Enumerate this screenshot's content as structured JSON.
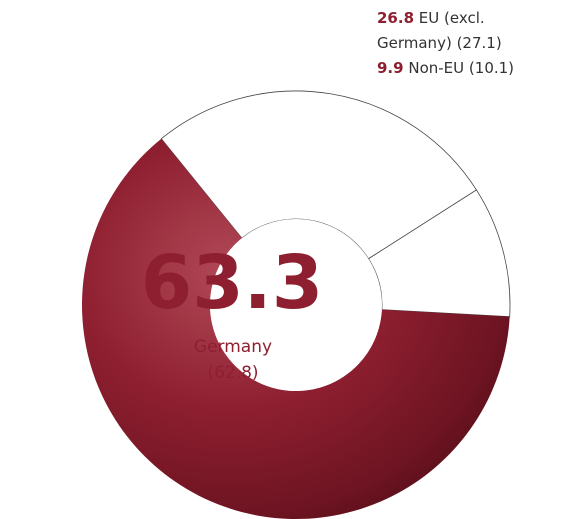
{
  "chart_data": {
    "type": "donut",
    "categories": [
      "Germany",
      "EU (excl. Germany)",
      "Non-EU"
    ],
    "values": [
      63.3,
      26.8,
      9.9
    ],
    "previous_labels": [
      "(62.8)",
      "(27.1)",
      "(10.1)"
    ],
    "colors": [
      "#8e1f30",
      "#ffffff",
      "#ffffff"
    ]
  }
}
